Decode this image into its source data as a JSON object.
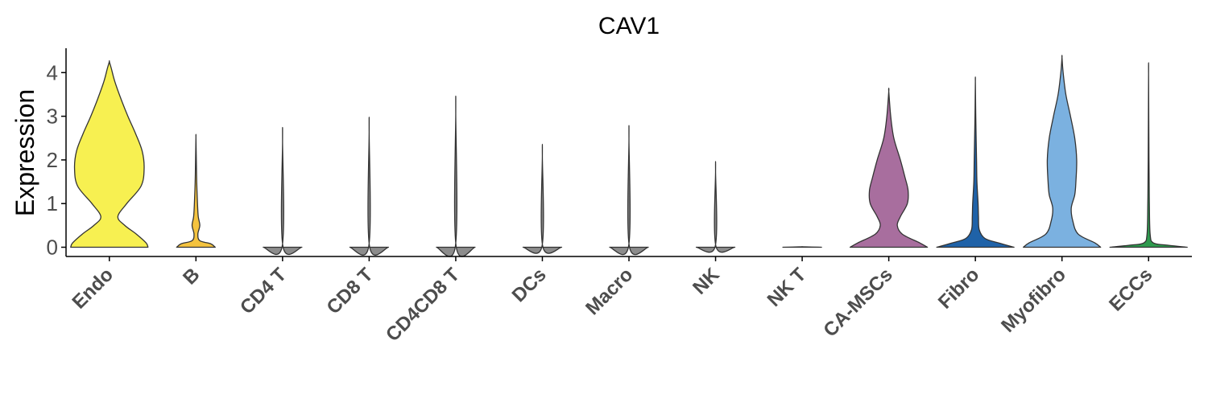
{
  "chart_data": {
    "type": "violin",
    "title": "CAV1",
    "ylabel": "Expression",
    "xlabel": "",
    "ylim": [
      -0.2,
      4.5
    ],
    "yticks": [
      0,
      1,
      2,
      3,
      4
    ],
    "grid": false,
    "legend": "none",
    "categories": [
      "Endo",
      "B",
      "CD4 T",
      "CD8 T",
      "CD4CD8 T",
      "DCs",
      "Macro",
      "NK",
      "NK T",
      "CA-MSCs",
      "Fibro",
      "Myofibro",
      "ECCs"
    ],
    "violins": [
      {
        "category": "Endo",
        "color": "#F7F051",
        "max": 4.25,
        "profile": [
          [
            0,
            1.0
          ],
          [
            0.1,
            0.95
          ],
          [
            0.3,
            0.7
          ],
          [
            0.5,
            0.4
          ],
          [
            0.7,
            0.22
          ],
          [
            1.0,
            0.45
          ],
          [
            1.4,
            0.82
          ],
          [
            1.8,
            0.9
          ],
          [
            2.2,
            0.85
          ],
          [
            2.6,
            0.68
          ],
          [
            3.0,
            0.48
          ],
          [
            3.4,
            0.3
          ],
          [
            3.8,
            0.14
          ],
          [
            4.1,
            0.05
          ],
          [
            4.25,
            0.0
          ]
        ]
      },
      {
        "category": "B",
        "color": "#F4C33F",
        "max": 2.52,
        "profile": [
          [
            0,
            0.5
          ],
          [
            0.08,
            0.38
          ],
          [
            0.15,
            0.1
          ],
          [
            0.3,
            0.05
          ],
          [
            0.5,
            0.1
          ],
          [
            0.7,
            0.06
          ],
          [
            1.0,
            0.04
          ],
          [
            1.5,
            0.02
          ],
          [
            2.0,
            0.01
          ],
          [
            2.52,
            0.0
          ]
        ]
      },
      {
        "category": "CD4 T",
        "color": "#8C8C8C",
        "max": 2.44,
        "profile": [
          [
            0,
            0.5
          ],
          [
            0.02,
            0.01
          ],
          [
            2.44,
            0.0
          ]
        ]
      },
      {
        "category": "CD8 T",
        "color": "#8C8C8C",
        "max": 2.65,
        "profile": [
          [
            0,
            0.5
          ],
          [
            0.02,
            0.01
          ],
          [
            2.65,
            0.0
          ]
        ]
      },
      {
        "category": "CD4CD8 T",
        "color": "#8C8C8C",
        "max": 3.08,
        "profile": [
          [
            0,
            0.5
          ],
          [
            0.02,
            0.01
          ],
          [
            3.08,
            0.0
          ]
        ]
      },
      {
        "category": "DCs",
        "color": "#8C8C8C",
        "max": 2.1,
        "profile": [
          [
            0,
            0.5
          ],
          [
            0.02,
            0.01
          ],
          [
            2.1,
            0.0
          ]
        ]
      },
      {
        "category": "Macro",
        "color": "#8C8C8C",
        "max": 2.48,
        "profile": [
          [
            0,
            0.5
          ],
          [
            0.02,
            0.01
          ],
          [
            2.48,
            0.0
          ]
        ]
      },
      {
        "category": "NK",
        "color": "#8C8C8C",
        "max": 1.75,
        "profile": [
          [
            0,
            0.5
          ],
          [
            0.02,
            0.01
          ],
          [
            1.75,
            0.0
          ]
        ]
      },
      {
        "category": "NK T",
        "color": "#8C8C8C",
        "max": 0.01,
        "profile": [
          [
            0,
            0.5
          ],
          [
            0.01,
            0.0
          ]
        ]
      },
      {
        "category": "CA-MSCs",
        "color": "#A86E9E",
        "max": 3.57,
        "profile": [
          [
            0,
            1.0
          ],
          [
            0.1,
            0.8
          ],
          [
            0.3,
            0.35
          ],
          [
            0.5,
            0.22
          ],
          [
            0.7,
            0.3
          ],
          [
            1.0,
            0.48
          ],
          [
            1.3,
            0.5
          ],
          [
            1.6,
            0.42
          ],
          [
            2.0,
            0.3
          ],
          [
            2.5,
            0.13
          ],
          [
            3.0,
            0.05
          ],
          [
            3.57,
            0.0
          ]
        ]
      },
      {
        "category": "Fibro",
        "color": "#1F62A8",
        "max": 3.8,
        "profile": [
          [
            0,
            1.0
          ],
          [
            0.1,
            0.6
          ],
          [
            0.2,
            0.25
          ],
          [
            0.4,
            0.1
          ],
          [
            0.7,
            0.08
          ],
          [
            1.0,
            0.07
          ],
          [
            1.5,
            0.04
          ],
          [
            2.0,
            0.03
          ],
          [
            3.0,
            0.01
          ],
          [
            3.8,
            0.0
          ]
        ]
      },
      {
        "category": "Myofibro",
        "color": "#7BB1E0",
        "max": 4.35,
        "profile": [
          [
            0,
            1.0
          ],
          [
            0.1,
            0.85
          ],
          [
            0.3,
            0.42
          ],
          [
            0.6,
            0.28
          ],
          [
            0.9,
            0.24
          ],
          [
            1.2,
            0.33
          ],
          [
            1.5,
            0.36
          ],
          [
            2.0,
            0.38
          ],
          [
            2.5,
            0.33
          ],
          [
            3.0,
            0.22
          ],
          [
            3.5,
            0.1
          ],
          [
            4.0,
            0.03
          ],
          [
            4.35,
            0.0
          ]
        ]
      },
      {
        "category": "ECCs",
        "color": "#2E9A4E",
        "max": 3.98,
        "profile": [
          [
            0,
            1.0
          ],
          [
            0.05,
            0.45
          ],
          [
            0.1,
            0.12
          ],
          [
            0.3,
            0.04
          ],
          [
            1.0,
            0.02
          ],
          [
            2.0,
            0.01
          ],
          [
            3.98,
            0.0
          ]
        ]
      }
    ]
  }
}
